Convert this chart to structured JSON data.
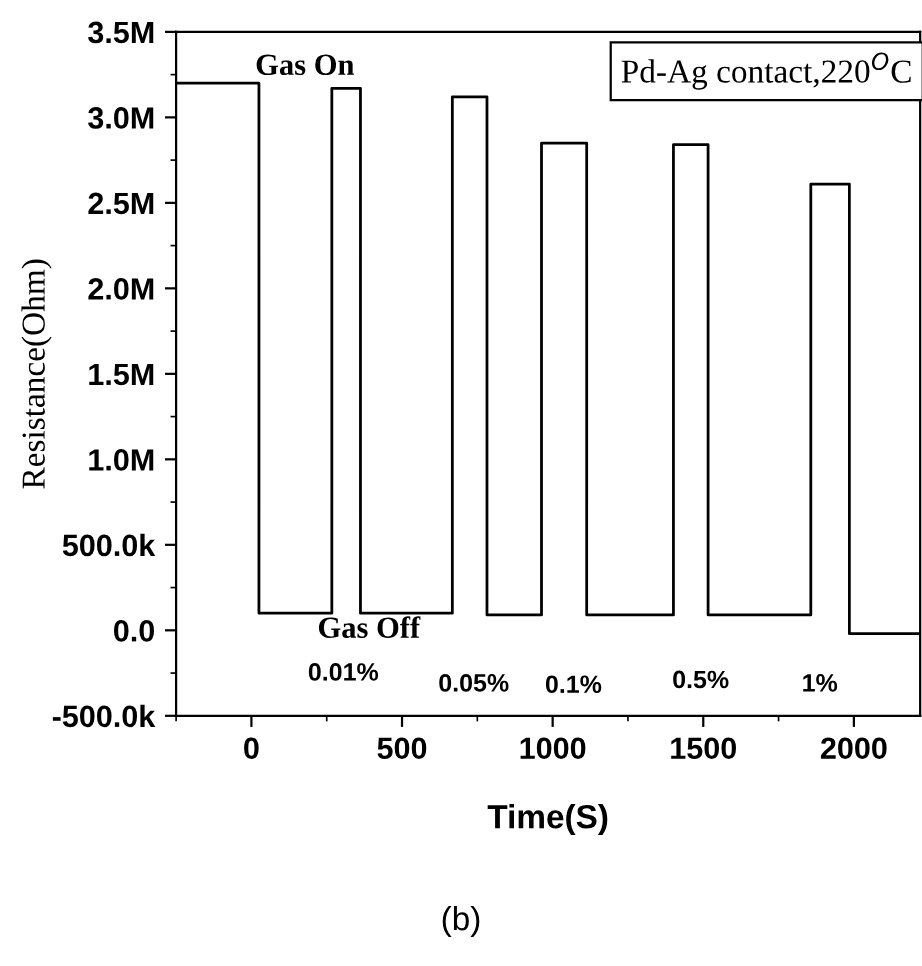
{
  "chart_data": {
    "type": "line",
    "xlabel": "Time(S)",
    "ylabel": "Resistance(Ohm)",
    "x": [
      -250,
      25,
      25,
      267,
      267,
      362,
      362,
      667,
      667,
      782,
      782,
      963,
      963,
      1113,
      1113,
      1401,
      1401,
      1516,
      1516,
      1857,
      1857,
      1985,
      1985,
      2220
    ],
    "series": [
      {
        "color": "#000000",
        "values": [
          3200000,
          3200000,
          100000,
          100000,
          3170000,
          3170000,
          100000,
          100000,
          3120000,
          3120000,
          90000,
          90000,
          2850000,
          2850000,
          90000,
          90000,
          2840000,
          2840000,
          90000,
          90000,
          2610000,
          2610000,
          -20000,
          -20000
        ]
      }
    ],
    "xlim": [
      -250,
      2220
    ],
    "xticks": [
      0,
      500,
      1000,
      1500,
      2000
    ],
    "ylim": [
      -500000,
      3500000
    ],
    "yticks": [
      {
        "value": -500000,
        "label": "-500.0k"
      },
      {
        "value": 0,
        "label": "0.0"
      },
      {
        "value": 500000,
        "label": "500.0k"
      },
      {
        "value": 1000000,
        "label": "1.0M"
      },
      {
        "value": 1500000,
        "label": "1.5M"
      },
      {
        "value": 2000000,
        "label": "2.0M"
      },
      {
        "value": 2500000,
        "label": "2.5M"
      },
      {
        "value": 3000000,
        "label": "3.0M"
      },
      {
        "value": 3500000,
        "label": "3.5M"
      }
    ],
    "grid": false,
    "legend": false,
    "marker": "none",
    "line_style": "solid",
    "annotations": [
      "Gas On",
      "Gas Off",
      "0.01%",
      "0.05%",
      "0.1%",
      "0.5%",
      "1%",
      "Pd-Ag contact,220$^{O}$C",
      "(b)"
    ]
  }
}
